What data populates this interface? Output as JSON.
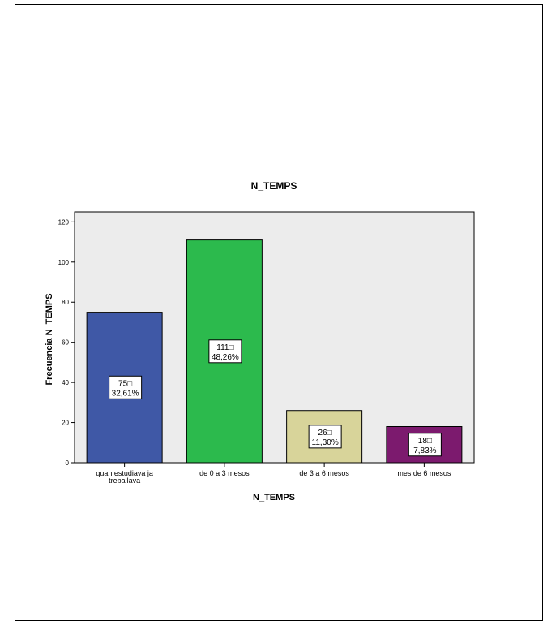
{
  "chart_data": {
    "type": "bar",
    "title": "N_TEMPS",
    "xlabel": "N_TEMPS",
    "ylabel": "Frecuencia N_TEMPS",
    "ylim": [
      0,
      125
    ],
    "yticks": [
      0,
      20,
      40,
      60,
      80,
      100,
      120
    ],
    "grid": false,
    "categories": [
      [
        "quan estudiava ja",
        "treballava"
      ],
      [
        "de 0 a 3 mesos"
      ],
      [
        "de 3 a 6 mesos"
      ],
      [
        "mes de 6 mesos"
      ]
    ],
    "values": [
      75,
      111,
      26,
      18
    ],
    "percent_labels": [
      "32,61%",
      "48,26%",
      "11,30%",
      "7,83%"
    ],
    "count_labels": [
      "75□",
      "111□",
      "26□",
      "18□"
    ],
    "colors": [
      "#3f58a6",
      "#2cba4d",
      "#d8d49a",
      "#7c1a6e"
    ],
    "plot_background": "#ececec"
  }
}
